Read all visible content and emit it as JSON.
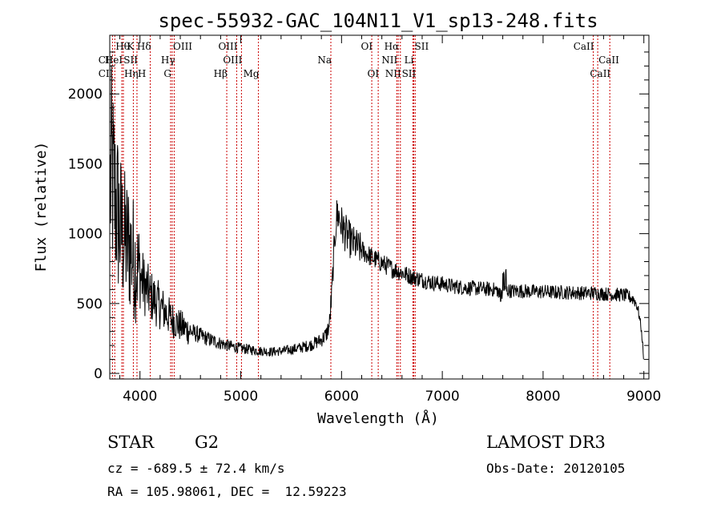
{
  "chart_data": {
    "type": "line",
    "title": "spec-55932-GAC_104N11_V1_sp13-248.fits",
    "xlabel": "Wavelength (Å)",
    "ylabel": "Flux (relative)",
    "xlim": [
      3700,
      9050
    ],
    "ylim": [
      -40,
      2420
    ],
    "x_ticks": [
      4000,
      5000,
      6000,
      7000,
      8000,
      9000
    ],
    "y_ticks": [
      0,
      500,
      1000,
      1500,
      2000
    ],
    "x_tick_labels": [
      "4000",
      "5000",
      "6000",
      "7000",
      "8000",
      "9000"
    ],
    "y_tick_labels": [
      "0",
      "500",
      "1000",
      "1500",
      "2000"
    ],
    "series": [
      {
        "name": "Flux",
        "color": "#000000",
        "envelope_x": [
          3700,
          3720,
          3750,
          3780,
          3800,
          3850,
          3900,
          3950,
          4000,
          4050,
          4100,
          4150,
          4200,
          4250,
          4300,
          4350,
          4400,
          4500,
          4600,
          4700,
          4800,
          4900,
          5000,
          5100,
          5200,
          5300,
          5400,
          5500,
          5600,
          5700,
          5800,
          5850,
          5880,
          5900,
          5920,
          5940,
          5960,
          5980,
          6000,
          6050,
          6100,
          6150,
          6200,
          6300,
          6400,
          6500,
          6600,
          6700,
          6800,
          6900,
          7000,
          7100,
          7200,
          7300,
          7400,
          7500,
          7600,
          7700,
          7800,
          7900,
          8000,
          8100,
          8200,
          8300,
          8400,
          8500,
          8600,
          8700,
          8800,
          8850,
          8900,
          8930,
          8950,
          8970,
          8990,
          9000
        ],
        "envelope_y": [
          1300,
          1450,
          1250,
          1150,
          1050,
          950,
          900,
          800,
          700,
          620,
          560,
          520,
          480,
          440,
          400,
          370,
          340,
          300,
          270,
          240,
          215,
          195,
          180,
          170,
          160,
          155,
          160,
          170,
          185,
          205,
          240,
          280,
          350,
          550,
          800,
          1050,
          1150,
          1110,
          1060,
          990,
          940,
          910,
          880,
          830,
          790,
          750,
          720,
          690,
          670,
          650,
          640,
          625,
          615,
          610,
          605,
          600,
          595,
          590,
          590,
          585,
          585,
          580,
          580,
          578,
          575,
          575,
          570,
          565,
          560,
          550,
          530,
          490,
          430,
          340,
          200,
          60
        ],
        "noise_seed": 12345
      }
    ],
    "spectral_lines": [
      {
        "label": "CII",
        "wavelength": 3727,
        "row": 2,
        "side": "left"
      },
      {
        "label": "CII",
        "wavelength": 3727,
        "row": 3,
        "side": "left"
      },
      {
        "label": "Hθ",
        "wavelength": 3750,
        "row": 1,
        "side": "right"
      },
      {
        "label": "HeI",
        "wavelength": 3820,
        "row": 2,
        "side": "left"
      },
      {
        "label": "Hη",
        "wavelength": 3835,
        "row": 3,
        "side": "right"
      },
      {
        "label": "K",
        "wavelength": 3934,
        "row": 1,
        "side": "left"
      },
      {
        "label": "SII",
        "wavelength": 3970,
        "row": 2,
        "side": "left"
      },
      {
        "label": "H",
        "wavelength": 3969,
        "row": 3,
        "side": "right"
      },
      {
        "label": "Hδ",
        "wavelength": 4102,
        "row": 1,
        "side": "left"
      },
      {
        "label": "OIII",
        "wavelength": 4320,
        "row": 1,
        "side": "right"
      },
      {
        "label": "Hγ",
        "wavelength": 4340,
        "row": 2,
        "side": "left"
      },
      {
        "label": "G",
        "wavelength": 4304,
        "row": 3,
        "side": "left"
      },
      {
        "label": "Hβ",
        "wavelength": 4861,
        "row": 3,
        "side": "left"
      },
      {
        "label": "OIII",
        "wavelength": 4960,
        "row": 1,
        "side": "left"
      },
      {
        "label": "OIII",
        "wavelength": 5007,
        "row": 2,
        "side": "left"
      },
      {
        "label": "Mg",
        "wavelength": 5175,
        "row": 3,
        "side": "left"
      },
      {
        "label": "Na",
        "wavelength": 5894,
        "row": 2,
        "side": "left"
      },
      {
        "label": "OI",
        "wavelength": 6300,
        "row": 1,
        "side": "left"
      },
      {
        "label": "OI",
        "wavelength": 6364,
        "row": 3,
        "side": "left"
      },
      {
        "label": "Hα",
        "wavelength": 6563,
        "row": 1,
        "side": "left"
      },
      {
        "label": "NII",
        "wavelength": 6548,
        "row": 2,
        "side": "left"
      },
      {
        "label": "NII",
        "wavelength": 6584,
        "row": 3,
        "side": "left"
      },
      {
        "label": "SII",
        "wavelength": 6717,
        "row": 1,
        "side": "right"
      },
      {
        "label": "Li",
        "wavelength": 6708,
        "row": 2,
        "side": "left"
      },
      {
        "label": "SII",
        "wavelength": 6731,
        "row": 3,
        "side": "left"
      },
      {
        "label": "CaII",
        "wavelength": 8498,
        "row": 1,
        "side": "left"
      },
      {
        "label": "CaII",
        "wavelength": 8542,
        "row": 2,
        "side": "right"
      },
      {
        "label": "CaII",
        "wavelength": 8662,
        "row": 3,
        "side": "left"
      }
    ],
    "line_color": "#cc0000"
  },
  "info": {
    "object_class": "STAR",
    "subclass": "G2",
    "survey": "LAMOST DR3",
    "redshift_text": "cz = -689.5 ± 72.4 km/s",
    "obs_date_text": "Obs-Date: 20120105",
    "coords_text": "RA = 105.98061, DEC =  12.59223"
  }
}
